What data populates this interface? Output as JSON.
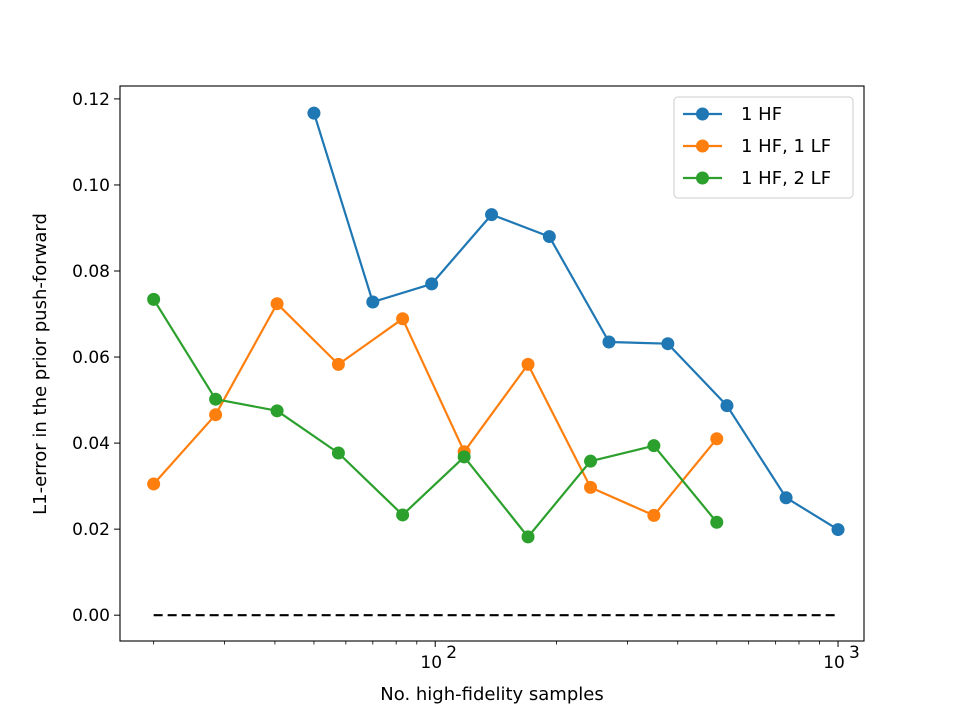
{
  "chart_data": {
    "type": "line",
    "title": "",
    "xlabel": "No. high-fidelity samples",
    "ylabel": "L1-error in the prior push-forward",
    "xscale": "log",
    "xlim": [
      16.5,
      1160
    ],
    "ylim": [
      -0.006,
      0.123
    ],
    "yticks": [
      0.0,
      0.02,
      0.04,
      0.06,
      0.08,
      0.1,
      0.12
    ],
    "ytick_labels": [
      "0.00",
      "0.02",
      "0.04",
      "0.06",
      "0.08",
      "0.10",
      "0.12"
    ],
    "xticks": [
      100,
      1000
    ],
    "xtick_labels": [
      {
        "base": "10",
        "exp": "2"
      },
      {
        "base": "10",
        "exp": "3"
      }
    ],
    "grid": false,
    "legend_position": "top-right",
    "series": [
      {
        "name": "1 HF",
        "color": "#1f77b4",
        "x": [
          50,
          70,
          98,
          138,
          192,
          270,
          378,
          530,
          743,
          1000
        ],
        "y": [
          0.1167,
          0.0728,
          0.077,
          0.0931,
          0.088,
          0.0635,
          0.0631,
          0.0487,
          0.0273,
          0.0199
        ]
      },
      {
        "name": "1 HF, 1 LF",
        "color": "#ff7f0e",
        "x": [
          20,
          28.5,
          40.5,
          57.5,
          83,
          118,
          170,
          243,
          349,
          500
        ],
        "y": [
          0.0305,
          0.0466,
          0.0724,
          0.0583,
          0.0689,
          0.038,
          0.0583,
          0.0297,
          0.0232,
          0.041
        ]
      },
      {
        "name": "1 HF, 2 LF",
        "color": "#2ca02c",
        "x": [
          20,
          28.5,
          40.5,
          57.5,
          83,
          118,
          170,
          243,
          349,
          500
        ],
        "y": [
          0.0734,
          0.0502,
          0.0475,
          0.0377,
          0.0233,
          0.0368,
          0.0182,
          0.0358,
          0.0394,
          0.0216
        ]
      }
    ],
    "reference_line": {
      "y": 0.0,
      "x": [
        20,
        1000
      ],
      "style": "dashed",
      "color": "#000000"
    }
  }
}
